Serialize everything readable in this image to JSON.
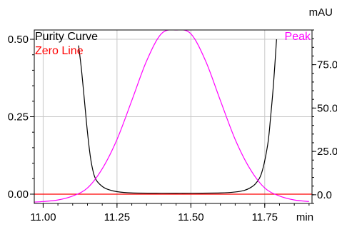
{
  "chart_data": {
    "type": "line",
    "x_axis": {
      "unit": "min",
      "range": [
        10.97,
        11.91
      ],
      "ticks": [
        11.0,
        11.25,
        11.5,
        11.75
      ],
      "tick_labels": [
        "11.00",
        "11.25",
        "11.50",
        "11.75"
      ]
    },
    "y_left": {
      "range": [
        -0.03,
        0.53
      ],
      "ticks": [
        0.0,
        0.25,
        0.5
      ],
      "tick_labels": [
        "0.00",
        "0.25",
        "0.50"
      ]
    },
    "y_right": {
      "unit": "mAU",
      "range": [
        -5,
        95
      ],
      "ticks": [
        0,
        25,
        50,
        75
      ],
      "tick_labels": [
        "0.0",
        "25.0",
        "50.0",
        "75.0"
      ]
    },
    "grid": true,
    "legend": {
      "left": [
        "Purity Curve",
        "Zero Line"
      ],
      "right": [
        "Peak"
      ]
    },
    "series": [
      {
        "name": "Purity Curve",
        "axis": "left",
        "color": "#000000",
        "x": [
          11.12,
          11.13,
          11.14,
          11.15,
          11.16,
          11.17,
          11.18,
          11.2,
          11.22,
          11.25,
          11.3,
          11.4,
          11.5,
          11.6,
          11.65,
          11.68,
          11.7,
          11.72,
          11.74,
          11.76,
          11.77,
          11.78,
          11.79
        ],
        "y": [
          0.48,
          0.4,
          0.3,
          0.2,
          0.12,
          0.07,
          0.045,
          0.025,
          0.015,
          0.008,
          0.004,
          0.003,
          0.003,
          0.004,
          0.007,
          0.012,
          0.02,
          0.035,
          0.07,
          0.16,
          0.25,
          0.36,
          0.5
        ]
      },
      {
        "name": "Zero Line",
        "axis": "left",
        "color": "#ff0000",
        "x": [
          10.97,
          11.91
        ],
        "y": [
          0.0,
          0.0
        ]
      },
      {
        "name": "Peak",
        "axis": "right",
        "color": "#ff00ff",
        "x": [
          10.97,
          11.0,
          11.05,
          11.1,
          11.15,
          11.2,
          11.25,
          11.3,
          11.35,
          11.4,
          11.45,
          11.5,
          11.55,
          11.6,
          11.65,
          11.7,
          11.75,
          11.8,
          11.85,
          11.9
        ],
        "y": [
          -4.2,
          -3.9,
          -3.0,
          -0.7,
          3.9,
          15.0,
          31.9,
          54.3,
          77.1,
          92.8,
          98.5,
          92.8,
          77.1,
          54.3,
          31.9,
          15.0,
          3.9,
          -0.7,
          -3.0,
          -3.9
        ]
      }
    ]
  },
  "colors": {
    "purity": "#000000",
    "zero": "#ff0000",
    "peak": "#ff00ff",
    "grid": "#c8c8c8",
    "axis": "#000000"
  }
}
